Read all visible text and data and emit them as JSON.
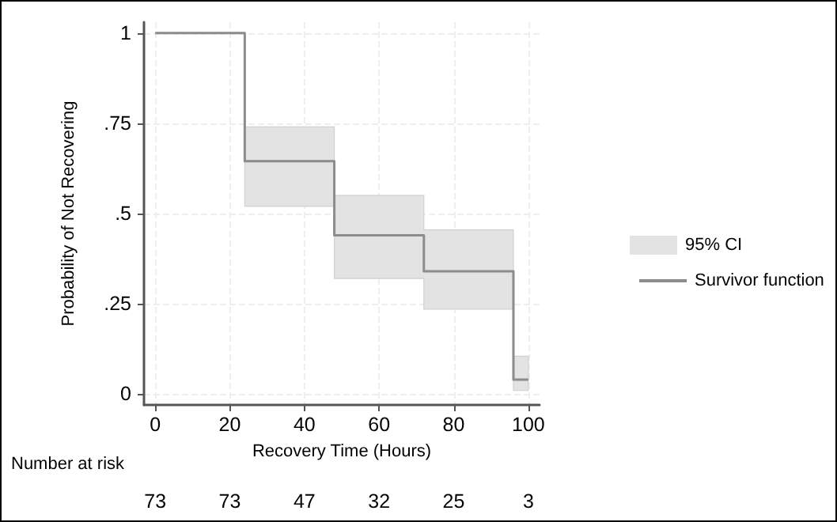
{
  "chart_data": {
    "type": "step",
    "xlabel": "Recovery Time (Hours)",
    "ylabel": "Probability of Not Recovering",
    "xlim": [
      -3,
      103
    ],
    "xticks": [
      0,
      20,
      40,
      60,
      80,
      100
    ],
    "ylim": [
      -0.03,
      1.03
    ],
    "yticks": [
      0,
      {
        "value": 0.25,
        "label": ".25"
      },
      {
        "value": 0.5,
        "label": ".5"
      },
      {
        "value": 0.75,
        "label": ".75"
      },
      1
    ],
    "series": [
      {
        "name": "Survivor function",
        "color": "#8c8c8c",
        "x": [
          0,
          24,
          48,
          72,
          96,
          100
        ],
        "values": [
          1,
          0.645,
          0.44,
          0.34,
          0.04,
          0.04
        ],
        "lower": [
          null,
          0.52,
          0.32,
          0.235,
          0.01,
          0.01
        ],
        "upper": [
          null,
          0.74,
          0.55,
          0.455,
          0.105,
          0.105
        ]
      }
    ],
    "annotations": [
      "95% CI",
      "Number at risk",
      "73",
      "73",
      "47",
      "32",
      "25",
      "3"
    ],
    "grid": true,
    "legend": "right",
    "line_style": "solid",
    "marker": "none"
  }
}
